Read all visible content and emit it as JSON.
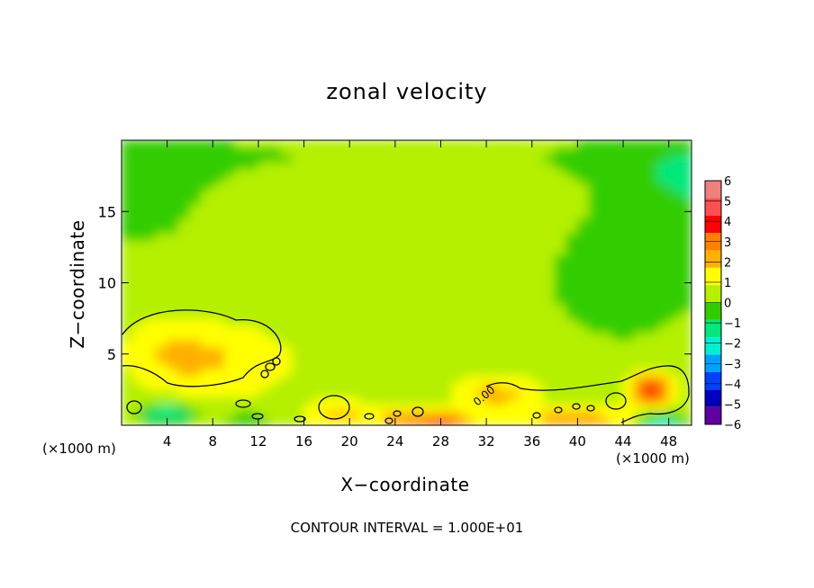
{
  "title": "zonal velocity",
  "xlabel": "X−coordinate",
  "ylabel": "Z−coordinate",
  "x_unit": "(×1000 m)",
  "contour_note": "CONTOUR INTERVAL = 1.000E+01",
  "contour_label": "0.00",
  "chart_data": {
    "type": "heatmap",
    "title": "zonal velocity",
    "xlabel": "X−coordinate",
    "ylabel": "Z−coordinate",
    "x_unit": "(×1000 m)",
    "xlim": [
      0,
      50
    ],
    "ylim": [
      0,
      20
    ],
    "x_ticks": [
      4,
      8,
      12,
      16,
      20,
      24,
      28,
      32,
      36,
      40,
      44,
      48
    ],
    "y_ticks": [
      5,
      10,
      15
    ],
    "colorbar": {
      "levels": [
        6,
        5,
        4,
        3,
        2,
        1,
        0,
        -1,
        -2,
        -3,
        -4,
        -5,
        -6
      ],
      "labels": [
        "6",
        "5",
        "4",
        "3",
        "2",
        "1",
        "0",
        "−1",
        "−2",
        "−3",
        "−4",
        "−5",
        "−6"
      ],
      "colors": [
        "#f08080",
        "#ff5050",
        "#ff0000",
        "#ff7f00",
        "#ffb000",
        "#ffff00",
        "#b4f000",
        "#32cd00",
        "#00e87a",
        "#00f0d0",
        "#00a0ff",
        "#0040ff",
        "#0000c0",
        "#6000a0"
      ]
    },
    "contour_interval": "1.000E+01",
    "background_value": -0.2,
    "features": [
      {
        "x": 5,
        "z": 5,
        "value": 1.3,
        "sx": 3.5,
        "sz": 2.0
      },
      {
        "x": 10,
        "z": 4.5,
        "value": 0.7,
        "sx": 4,
        "sz": 2
      },
      {
        "x": 46.5,
        "z": 2.5,
        "value": 3.5,
        "sx": 1.8,
        "sz": 1.2
      },
      {
        "x": 33,
        "z": 2.2,
        "value": 1.5,
        "sx": 3,
        "sz": 1
      },
      {
        "x": 28,
        "z": 0.3,
        "value": 3.0,
        "sx": 3,
        "sz": 0.6
      },
      {
        "x": 40,
        "z": 0.4,
        "value": 2.0,
        "sx": 4,
        "sz": 0.8
      },
      {
        "x": 4,
        "z": 0.8,
        "value": -3.0,
        "sx": 2.5,
        "sz": 0.8
      },
      {
        "x": 47.5,
        "z": 0.3,
        "value": -3.5,
        "sx": 2,
        "sz": 0.6
      },
      {
        "x": 11,
        "z": 0.3,
        "value": -1.5,
        "sx": 3,
        "sz": 0.7
      },
      {
        "x": 19,
        "z": 0.8,
        "value": 1.2,
        "sx": 2.5,
        "sz": 0.9
      },
      {
        "x": 24,
        "z": 0.5,
        "value": 1.0,
        "sx": 3,
        "sz": 0.6
      },
      {
        "x": 44,
        "z": 10,
        "value": -1.6,
        "sx": 8,
        "sz": 5
      },
      {
        "x": 25,
        "z": 19,
        "value": -1.0,
        "sx": 30,
        "sz": 2
      },
      {
        "x": 0,
        "z": 16,
        "value": -1.4,
        "sx": 10,
        "sz": 5
      },
      {
        "x": 50,
        "z": 17,
        "value": -1.8,
        "sx": 8,
        "sz": 5
      }
    ]
  }
}
